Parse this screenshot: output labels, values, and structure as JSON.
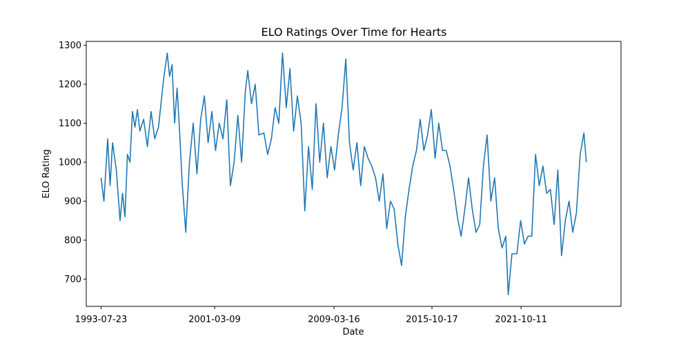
{
  "chart_data": {
    "type": "line",
    "title": "ELO Ratings Over Time for Hearts",
    "xlabel": "Date",
    "ylabel": "ELO Rating",
    "x_tick_labels": [
      "1993-07-23",
      "2001-03-09",
      "2009-03-16",
      "2015-10-17",
      "2021-10-11"
    ],
    "y_ticks": [
      700,
      800,
      900,
      1000,
      1100,
      1200,
      1300
    ],
    "xlim": [
      "1992-07-24",
      "2028-06-29"
    ],
    "ylim": [
      630,
      1310
    ],
    "grid": false,
    "line_color": "#1f77b4",
    "series": [
      {
        "points": [
          [
            "1993-07-23",
            960
          ],
          [
            "1993-10-01",
            900
          ],
          [
            "1994-01-01",
            1060
          ],
          [
            "1994-03-01",
            940
          ],
          [
            "1994-05-01",
            1050
          ],
          [
            "1994-08-01",
            980
          ],
          [
            "1994-11-01",
            850
          ],
          [
            "1995-01-01",
            920
          ],
          [
            "1995-03-01",
            860
          ],
          [
            "1995-05-01",
            1020
          ],
          [
            "1995-07-01",
            1000
          ],
          [
            "1995-09-01",
            1130
          ],
          [
            "1995-11-01",
            1090
          ],
          [
            "1996-01-01",
            1135
          ],
          [
            "1996-03-01",
            1080
          ],
          [
            "1996-06-01",
            1110
          ],
          [
            "1996-09-01",
            1040
          ],
          [
            "1996-12-01",
            1130
          ],
          [
            "1997-03-01",
            1060
          ],
          [
            "1997-06-01",
            1090
          ],
          [
            "1997-10-01",
            1210
          ],
          [
            "1998-01-01",
            1280
          ],
          [
            "1998-03-01",
            1220
          ],
          [
            "1998-05-01",
            1250
          ],
          [
            "1998-07-01",
            1100
          ],
          [
            "1998-09-01",
            1190
          ],
          [
            "1998-11-01",
            1080
          ],
          [
            "1999-01-01",
            950
          ],
          [
            "1999-04-01",
            820
          ],
          [
            "1999-07-01",
            1000
          ],
          [
            "1999-10-01",
            1100
          ],
          [
            "2000-01-01",
            970
          ],
          [
            "2000-04-01",
            1110
          ],
          [
            "2000-07-01",
            1170
          ],
          [
            "2000-10-01",
            1050
          ],
          [
            "2001-01-01",
            1130
          ],
          [
            "2001-04-01",
            1030
          ],
          [
            "2001-07-01",
            1100
          ],
          [
            "2001-10-01",
            1060
          ],
          [
            "2002-01-01",
            1160
          ],
          [
            "2002-04-01",
            940
          ],
          [
            "2002-07-01",
            1000
          ],
          [
            "2002-10-01",
            1120
          ],
          [
            "2003-01-01",
            1000
          ],
          [
            "2003-04-01",
            1180
          ],
          [
            "2003-06-01",
            1235
          ],
          [
            "2003-09-01",
            1150
          ],
          [
            "2003-12-01",
            1200
          ],
          [
            "2004-03-01",
            1070
          ],
          [
            "2004-07-01",
            1075
          ],
          [
            "2004-10-01",
            1020
          ],
          [
            "2005-01-01",
            1060
          ],
          [
            "2005-04-01",
            1140
          ],
          [
            "2005-07-01",
            1100
          ],
          [
            "2005-10-01",
            1280
          ],
          [
            "2006-01-01",
            1140
          ],
          [
            "2006-04-01",
            1240
          ],
          [
            "2006-07-01",
            1080
          ],
          [
            "2006-10-01",
            1170
          ],
          [
            "2007-01-01",
            1100
          ],
          [
            "2007-04-01",
            875
          ],
          [
            "2007-07-01",
            1040
          ],
          [
            "2007-10-01",
            930
          ],
          [
            "2008-01-01",
            1150
          ],
          [
            "2008-04-01",
            1000
          ],
          [
            "2008-07-01",
            1100
          ],
          [
            "2008-10-01",
            960
          ],
          [
            "2009-01-01",
            1040
          ],
          [
            "2009-04-01",
            980
          ],
          [
            "2009-07-01",
            1070
          ],
          [
            "2009-10-01",
            1140
          ],
          [
            "2010-01-01",
            1265
          ],
          [
            "2010-04-01",
            1050
          ],
          [
            "2010-07-01",
            980
          ],
          [
            "2010-10-01",
            1050
          ],
          [
            "2011-01-01",
            940
          ],
          [
            "2011-04-01",
            1040
          ],
          [
            "2011-07-01",
            1010
          ],
          [
            "2011-10-01",
            990
          ],
          [
            "2012-01-01",
            960
          ],
          [
            "2012-04-01",
            900
          ],
          [
            "2012-07-01",
            970
          ],
          [
            "2012-10-01",
            830
          ],
          [
            "2013-01-01",
            900
          ],
          [
            "2013-04-01",
            880
          ],
          [
            "2013-07-01",
            790
          ],
          [
            "2013-10-01",
            735
          ],
          [
            "2014-01-01",
            860
          ],
          [
            "2014-04-01",
            930
          ],
          [
            "2014-07-01",
            990
          ],
          [
            "2014-10-01",
            1030
          ],
          [
            "2015-01-01",
            1110
          ],
          [
            "2015-04-01",
            1030
          ],
          [
            "2015-07-01",
            1070
          ],
          [
            "2015-10-01",
            1135
          ],
          [
            "2016-01-01",
            1010
          ],
          [
            "2016-04-01",
            1100
          ],
          [
            "2016-07-01",
            1030
          ],
          [
            "2016-10-01",
            1030
          ],
          [
            "2017-01-01",
            990
          ],
          [
            "2017-04-01",
            930
          ],
          [
            "2017-07-01",
            860
          ],
          [
            "2017-10-01",
            810
          ],
          [
            "2018-01-01",
            880
          ],
          [
            "2018-04-01",
            960
          ],
          [
            "2018-07-01",
            880
          ],
          [
            "2018-10-01",
            820
          ],
          [
            "2019-01-01",
            840
          ],
          [
            "2019-04-01",
            990
          ],
          [
            "2019-07-01",
            1070
          ],
          [
            "2019-10-01",
            900
          ],
          [
            "2020-01-01",
            960
          ],
          [
            "2020-04-01",
            830
          ],
          [
            "2020-07-01",
            780
          ],
          [
            "2020-10-01",
            810
          ],
          [
            "2020-12-01",
            660
          ],
          [
            "2021-03-01",
            765
          ],
          [
            "2021-07-01",
            765
          ],
          [
            "2021-10-01",
            850
          ],
          [
            "2022-01-01",
            790
          ],
          [
            "2022-04-01",
            810
          ],
          [
            "2022-07-01",
            810
          ],
          [
            "2022-10-01",
            1020
          ],
          [
            "2023-01-01",
            940
          ],
          [
            "2023-04-01",
            990
          ],
          [
            "2023-07-01",
            920
          ],
          [
            "2023-10-01",
            930
          ],
          [
            "2024-01-01",
            840
          ],
          [
            "2024-04-01",
            980
          ],
          [
            "2024-07-01",
            760
          ],
          [
            "2024-10-01",
            850
          ],
          [
            "2025-01-01",
            900
          ],
          [
            "2025-04-01",
            820
          ],
          [
            "2025-07-01",
            870
          ],
          [
            "2025-10-01",
            1020
          ],
          [
            "2026-01-01",
            1075
          ],
          [
            "2026-03-01",
            1000
          ]
        ]
      }
    ]
  }
}
